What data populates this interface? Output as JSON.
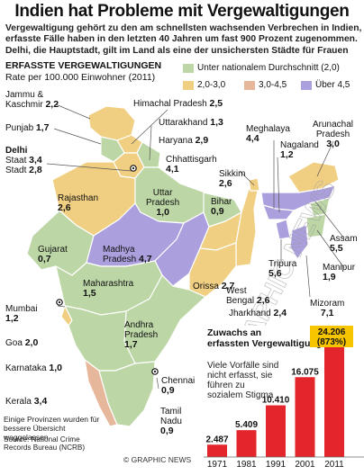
{
  "title": "Indien hat Probleme mit Vergewaltigungen",
  "intro_lines": [
    "Vergewaltigung gehört zu den am schnellsten wachsenden Verbrechen in Indien,",
    "erfasste Fälle haben in den letzten 40 Jahren um fast 900 Prozent zugenommen.",
    "Delhi, die Hauptstadt, gilt im Land als eine der unsichersten Städte für Frauen"
  ],
  "map_heading": "ERFASSTE VERGEWALTIGUNGEN",
  "map_subheading": "Rate per 100.000 Einwohner (2011)",
  "legend": [
    {
      "label": "Unter nationalem Durchschnitt (2,0)",
      "color": "#bcd6a6"
    },
    {
      "label": "2,0-3,0",
      "color": "#f1cf82"
    },
    {
      "label": "3,0-4,5",
      "color": "#e7b79b"
    },
    {
      "label": "Über 4,5",
      "color": "#ab9fdd"
    }
  ],
  "regions": [
    {
      "name": "Jammu &",
      "name2": "Kaschmir",
      "value": "2,2"
    },
    {
      "name": "Himachal Pradesh",
      "value": "2,5"
    },
    {
      "name": "Punjab",
      "value": "1,7"
    },
    {
      "name": "Uttarakhand",
      "value": "1,3"
    },
    {
      "name": "Arunachal",
      "name2": "Pradesh",
      "value": "3,0"
    },
    {
      "name": "Delhi",
      "name2": "Staat",
      "name3": "Stadt",
      "value": "3,4",
      "value2": "2,8"
    },
    {
      "name": "Haryana",
      "value": "2,9"
    },
    {
      "name": "Meghalaya",
      "value": "4,4"
    },
    {
      "name": "Nagaland",
      "value": "1,2"
    },
    {
      "name": "Chhattisgarh",
      "value": "4,1"
    },
    {
      "name": "Sikkim",
      "value": "2,6"
    },
    {
      "name": "Rajasthan",
      "value": "2,6"
    },
    {
      "name": "Uttar",
      "name2": "Pradesh",
      "value": "1,0"
    },
    {
      "name": "Bihar",
      "value": "0,9"
    },
    {
      "name": "Assam",
      "value": "5,5"
    },
    {
      "name": "Gujarat",
      "value": "0,7"
    },
    {
      "name": "Madhya",
      "name2": "Pradesh",
      "value": "4,7"
    },
    {
      "name": "Maharashtra",
      "value": "1,5"
    },
    {
      "name": "Orissa",
      "value": "2,7"
    },
    {
      "name": "Tripura",
      "value": "5,6"
    },
    {
      "name": "Manipur",
      "value": "1,9"
    },
    {
      "name": "Mumbai",
      "value": "1,2"
    },
    {
      "name": "West",
      "name2": "Bengal",
      "value": "2,6"
    },
    {
      "name": "Jharkhand",
      "value": "2,4"
    },
    {
      "name": "Mizoram",
      "value": "7,1"
    },
    {
      "name": "Andhra",
      "name2": "Pradesh",
      "value": "1,7"
    },
    {
      "name": "Goa",
      "value": "2,0"
    },
    {
      "name": "Karnataka",
      "value": "1,0"
    },
    {
      "name": "Chennai",
      "value": "0,9"
    },
    {
      "name": "Kerala",
      "value": "3,4"
    },
    {
      "name": "Tamil",
      "name2": "Nadu",
      "value": "0,9"
    }
  ],
  "footnote": "Einige Provinzen wurden für bessere Übersicht weggelassen",
  "source": "Source: National Crime Records Bureau (NCRB)",
  "brand": "© GRAPHIC NEWS",
  "watermark": "© GRAPHIC NEWS",
  "chart_data": {
    "type": "bar",
    "title": "Zuwachs an erfassten Vergewaltigungen",
    "subtitle": "Viele Vorfälle sind nicht erfasst, sie führen zu sozialem Stigma",
    "categories": [
      "1971",
      "1981",
      "1991",
      "2001",
      "2011"
    ],
    "values": [
      2487,
      5409,
      10410,
      16075,
      24206
    ],
    "value_labels": [
      "2.487",
      "5.409",
      "10.410",
      "16.075",
      "24.206"
    ],
    "highlight_label": "(873%)",
    "bar_color": "#e3262b",
    "highlight_color": "#f6c500"
  }
}
